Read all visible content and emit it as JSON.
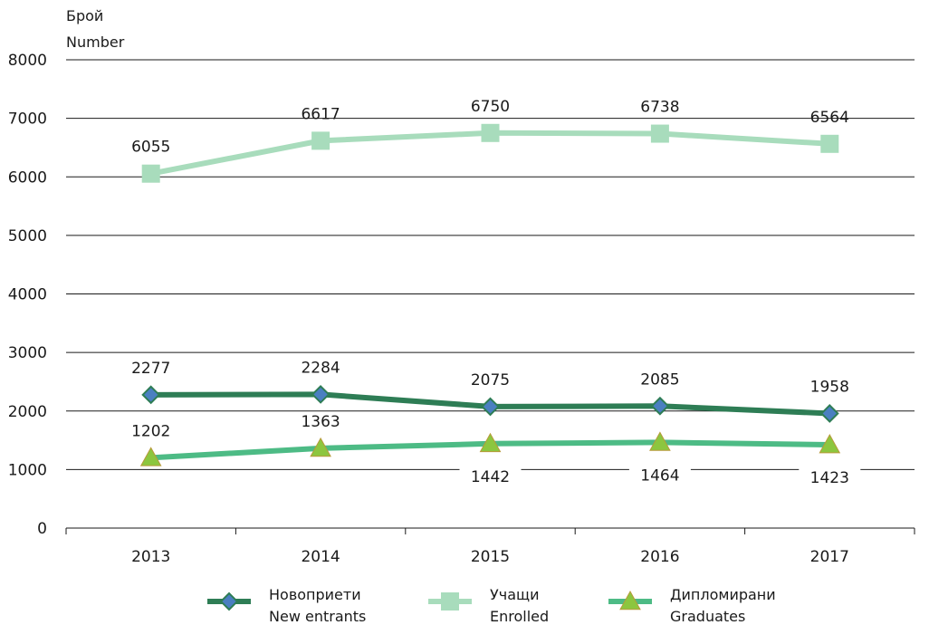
{
  "chart_data": {
    "type": "line",
    "ylabel_lines": [
      "Брой",
      "Number"
    ],
    "categories": [
      "2013",
      "2014",
      "2015",
      "2016",
      "2017"
    ],
    "ylim": [
      0,
      8000
    ],
    "yticks": [
      0,
      1000,
      2000,
      3000,
      4000,
      5000,
      6000,
      7000,
      8000
    ],
    "grid": true,
    "legend_position": "bottom",
    "series": [
      {
        "name_lines": [
          "Новоприети",
          "New entrants"
        ],
        "values": [
          2277,
          2284,
          2075,
          2085,
          1958
        ],
        "marker": "diamond",
        "color": "#2e7d55",
        "marker_fill": "#4a7fc1",
        "label_position": "above"
      },
      {
        "name_lines": [
          "Учащи",
          "Enrolled"
        ],
        "values": [
          6055,
          6617,
          6750,
          6738,
          6564
        ],
        "marker": "square",
        "color": "#a8dcbc",
        "marker_fill": "#a8dcbc",
        "label_position": "above"
      },
      {
        "name_lines": [
          "Дипломирани",
          "Graduates"
        ],
        "values": [
          1202,
          1363,
          1442,
          1464,
          1423
        ],
        "marker": "triangle",
        "color": "#4dbb85",
        "marker_fill": "#8cc63f",
        "label_position": [
          "above",
          "above",
          "below",
          "below",
          "below"
        ]
      }
    ]
  }
}
